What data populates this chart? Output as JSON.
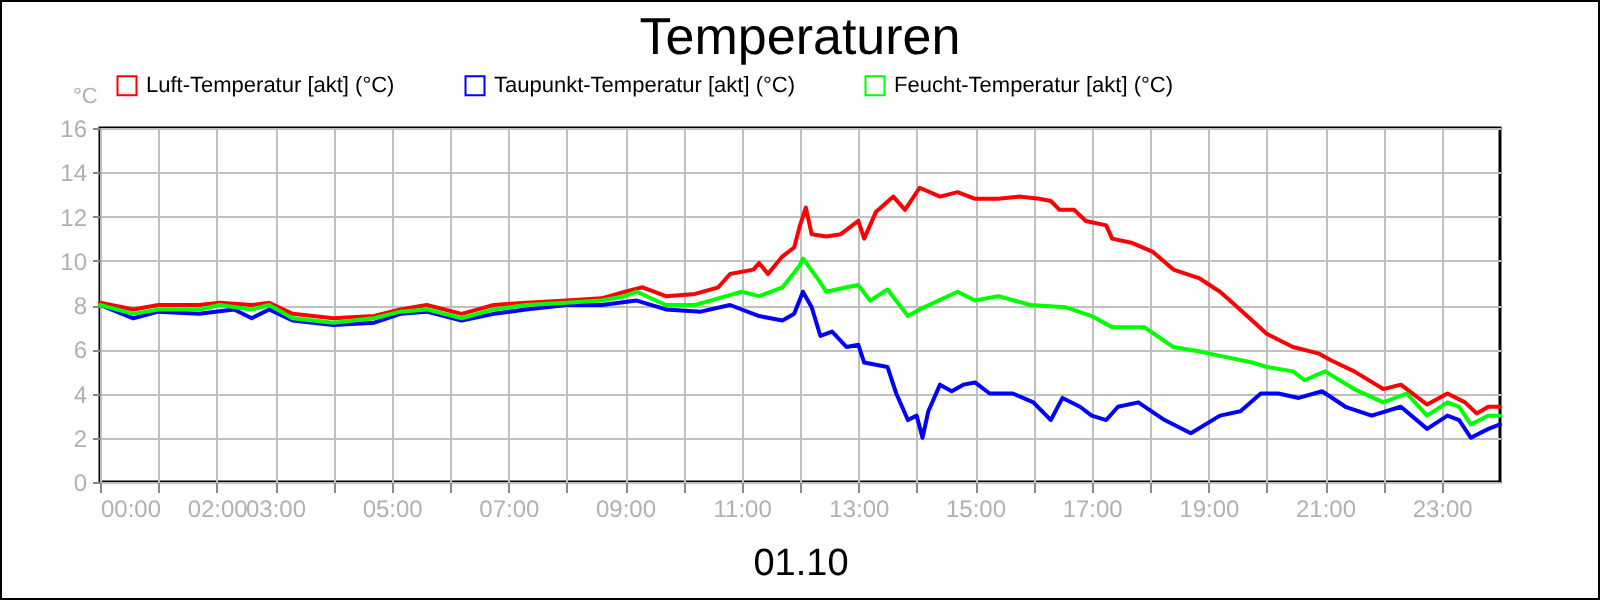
{
  "chart_data": {
    "type": "line",
    "title": "Temperaturen",
    "xlabel": "01.10",
    "ylabel": "°C",
    "xlim": [
      0,
      24
    ],
    "ylim": [
      0,
      16
    ],
    "xticks": [
      {
        "value": 0,
        "label": "00:00"
      },
      {
        "value": 1,
        "label": null
      },
      {
        "value": 2,
        "label": "02:00"
      },
      {
        "value": 3,
        "label": "03:00"
      },
      {
        "value": 4,
        "label": null
      },
      {
        "value": 5,
        "label": "05:00"
      },
      {
        "value": 6,
        "label": null
      },
      {
        "value": 7,
        "label": "07:00"
      },
      {
        "value": 8,
        "label": null
      },
      {
        "value": 9,
        "label": "09:00"
      },
      {
        "value": 10,
        "label": null
      },
      {
        "value": 11,
        "label": "11:00"
      },
      {
        "value": 12,
        "label": null
      },
      {
        "value": 13,
        "label": "13:00"
      },
      {
        "value": 14,
        "label": null
      },
      {
        "value": 15,
        "label": "15:00"
      },
      {
        "value": 16,
        "label": null
      },
      {
        "value": 17,
        "label": "17:00"
      },
      {
        "value": 18,
        "label": null
      },
      {
        "value": 19,
        "label": "19:00"
      },
      {
        "value": 20,
        "label": null
      },
      {
        "value": 21,
        "label": "21:00"
      },
      {
        "value": 22,
        "label": null
      },
      {
        "value": 23,
        "label": "23:00"
      }
    ],
    "yticks": [
      0,
      2,
      4,
      6,
      8,
      10,
      12,
      14,
      16
    ],
    "grid": true,
    "legend": "top left",
    "series": [
      {
        "name": "Luft-Temperatur [akt] (°C)",
        "color": "#ff0000",
        "x": [
          0,
          0.57,
          1,
          1.7,
          2.05,
          2.6,
          2.9,
          3.3,
          4,
          4.7,
          5.15,
          5.6,
          6.2,
          6.75,
          7.3,
          8,
          8.6,
          9,
          9.3,
          9.7,
          10.2,
          10.6,
          10.8,
          11.2,
          11.3,
          11.45,
          11.7,
          11.9,
          12,
          12.1,
          12.2,
          12.45,
          12.7,
          13,
          13.1,
          13.3,
          13.6,
          13.8,
          14.05,
          14.4,
          14.7,
          15,
          15.4,
          15.75,
          16.1,
          16.3,
          16.45,
          16.7,
          16.9,
          17.25,
          17.35,
          17.7,
          18.05,
          18.4,
          18.85,
          19.2,
          19.5,
          20,
          20.45,
          20.9,
          21.1,
          21.5,
          22,
          22.3,
          22.75,
          23.1,
          23.4,
          23.6,
          23.8,
          24
        ],
        "values": [
          8.1,
          7.8,
          8,
          8,
          8.1,
          8,
          8.1,
          7.6,
          7.4,
          7.5,
          7.8,
          8,
          7.6,
          8,
          8.1,
          8.2,
          8.3,
          8.6,
          8.8,
          8.4,
          8.5,
          8.8,
          9.4,
          9.6,
          9.9,
          9.4,
          10.2,
          10.6,
          11.6,
          12.4,
          11.2,
          11.1,
          11.2,
          11.8,
          11,
          12.2,
          12.9,
          12.3,
          13.3,
          12.9,
          13.1,
          12.8,
          12.8,
          12.9,
          12.8,
          12.7,
          12.3,
          12.3,
          11.8,
          11.6,
          11,
          10.8,
          10.4,
          9.6,
          9.2,
          8.6,
          7.9,
          6.7,
          6.1,
          5.8,
          5.5,
          5,
          4.2,
          4.4,
          3.5,
          4,
          3.6,
          3.1,
          3.4,
          3.4
        ]
      },
      {
        "name": "Taupunkt-Temperatur [akt] (°C)",
        "color": "#0000ff",
        "x": [
          0,
          0.57,
          1,
          1.7,
          2.3,
          2.6,
          2.9,
          3.3,
          4,
          4.7,
          5.15,
          5.6,
          6.2,
          6.75,
          7.3,
          8,
          8.6,
          9.2,
          9.7,
          10.3,
          10.8,
          11.3,
          11.7,
          11.9,
          12.05,
          12.2,
          12.35,
          12.55,
          12.8,
          13,
          13.1,
          13.5,
          13.65,
          13.85,
          14,
          14.1,
          14.2,
          14.4,
          14.6,
          14.8,
          15,
          15.25,
          15.65,
          16,
          16.3,
          16.5,
          16.8,
          17,
          17.25,
          17.45,
          17.8,
          18.25,
          18.7,
          19.2,
          19.55,
          19.9,
          20.2,
          20.55,
          20.95,
          21.35,
          21.8,
          22.3,
          22.75,
          23.1,
          23.3,
          23.5,
          23.8,
          24
        ],
        "values": [
          8,
          7.4,
          7.7,
          7.6,
          7.8,
          7.4,
          7.8,
          7.3,
          7.1,
          7.2,
          7.6,
          7.7,
          7.3,
          7.6,
          7.8,
          8,
          8,
          8.2,
          7.8,
          7.7,
          8,
          7.5,
          7.3,
          7.6,
          8.6,
          7.9,
          6.6,
          6.8,
          6.1,
          6.2,
          5.4,
          5.2,
          4,
          2.8,
          3,
          2,
          3.2,
          4.4,
          4.1,
          4.4,
          4.5,
          4,
          4,
          3.6,
          2.8,
          3.8,
          3.4,
          3,
          2.8,
          3.4,
          3.6,
          2.8,
          2.2,
          3,
          3.2,
          4,
          4,
          3.8,
          4.1,
          3.4,
          3,
          3.4,
          2.4,
          3,
          2.8,
          2,
          2.4,
          2.6
        ]
      },
      {
        "name": "Feucht-Temperatur [akt] (°C)",
        "color": "#00ff00",
        "x": [
          0,
          0.57,
          1,
          1.7,
          2.05,
          2.6,
          2.9,
          3.3,
          4,
          4.7,
          5.15,
          5.6,
          6.2,
          6.75,
          7.3,
          8,
          8.6,
          9,
          9.2,
          9.7,
          10.2,
          10.6,
          11,
          11.3,
          11.7,
          12,
          12.05,
          12.3,
          12.45,
          12.8,
          13,
          13.2,
          13.5,
          13.85,
          14.05,
          14.7,
          15,
          15.4,
          15.95,
          16.55,
          17,
          17.35,
          17.9,
          18.4,
          18.85,
          19.2,
          19.75,
          20,
          20.45,
          20.65,
          21,
          21.5,
          22,
          22.4,
          22.75,
          23.1,
          23.3,
          23.5,
          23.8,
          24
        ],
        "values": [
          8,
          7.6,
          7.8,
          7.8,
          8,
          7.8,
          8,
          7.4,
          7.2,
          7.4,
          7.7,
          7.8,
          7.4,
          7.8,
          8,
          8.1,
          8.2,
          8.4,
          8.6,
          8,
          8,
          8.3,
          8.6,
          8.4,
          8.8,
          9.8,
          10.1,
          9.2,
          8.6,
          8.8,
          8.9,
          8.2,
          8.7,
          7.5,
          7.8,
          8.6,
          8.2,
          8.4,
          8,
          7.9,
          7.5,
          7,
          7,
          6.1,
          5.9,
          5.7,
          5.4,
          5.2,
          5,
          4.6,
          5,
          4.2,
          3.6,
          4,
          3,
          3.6,
          3.4,
          2.6,
          3,
          3
        ]
      }
    ]
  }
}
